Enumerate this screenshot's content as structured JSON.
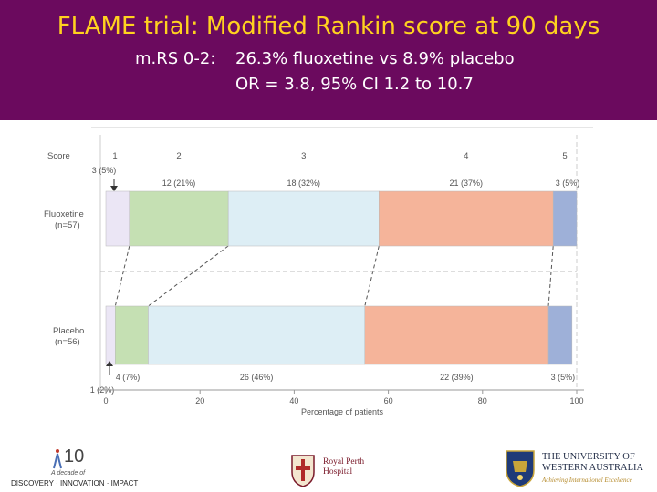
{
  "slide": {
    "title": "FLAME trial: Modified Rankin score at 90 days",
    "result_label": "m.RS 0-2:",
    "result_text": "26.3% fluoxetine vs 8.9% placebo",
    "or_text": "OR = 3.8, 95% CI 1.2 to 10.7",
    "colors": {
      "banner": "#6b0a5e",
      "title": "#ffd21f",
      "text": "#ffffff"
    }
  },
  "chart_data": {
    "type": "bar",
    "orientation": "horizontal-stacked",
    "xlabel": "Percentage of patients",
    "xlim": [
      0,
      100
    ],
    "xticks": [
      0,
      20,
      40,
      60,
      80,
      100
    ],
    "score_label": "Score",
    "categories": [
      "1",
      "2",
      "3",
      "4",
      "5"
    ],
    "colors": [
      "#ebe6f5",
      "#c5e0b3",
      "#ddeef5",
      "#f5b49a",
      "#9eb0d8"
    ],
    "series": [
      {
        "name": "Fluoxetine",
        "n_label": "(n=57)",
        "values": [
          5,
          21,
          32,
          37,
          5
        ],
        "labels": [
          "3 (5%)",
          "12 (21%)",
          "18 (32%)",
          "21 (37%)",
          "3 (5%)"
        ]
      },
      {
        "name": "Placebo",
        "n_label": "(n=56)",
        "values": [
          2,
          7,
          46,
          39,
          5
        ],
        "labels": [
          "1 (2%)",
          "4 (7%)",
          "26 (46%)",
          "22 (39%)",
          "3 (5%)"
        ]
      }
    ]
  },
  "footer": {
    "decade_number": "10",
    "decade_sub": "A decade of",
    "decade_tagline": "DISCOVERY · INNOVATION · IMPACT",
    "hospital_name": "Royal Perth Hospital",
    "university_name_line1": "THE UNIVERSITY OF",
    "university_name_line2": "WESTERN AUSTRALIA",
    "university_motto": "Achieving International Excellence"
  }
}
